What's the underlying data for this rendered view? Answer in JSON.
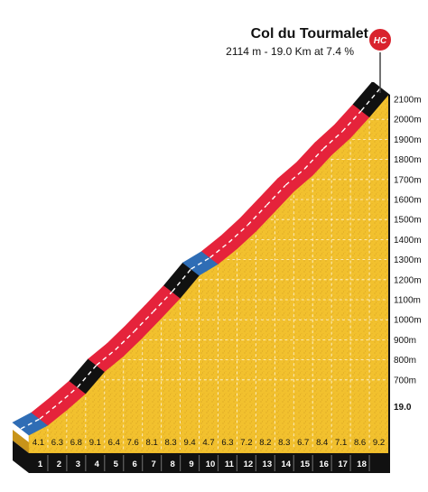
{
  "climb": {
    "name": "Col du Tourmalet",
    "summary": "2114 m - 19.0 Km at 7.4 %",
    "category_badge": "HC"
  },
  "axis": {
    "alt_labels": [
      "2100m",
      "2000m",
      "1900m",
      "1800m",
      "1700m",
      "1600m",
      "1500m",
      "1400m",
      "1300m",
      "1200m",
      "1100m",
      "1000m",
      "900m",
      "800m",
      "700m"
    ],
    "total_distance_label": "19.0"
  },
  "colors": {
    "fill": "#f2c12e",
    "fill_dark": "#e0a91c",
    "side_fill": "#c8941a",
    "ribbon_hard": "#e5233b",
    "ribbon_extreme": "#111111",
    "ribbon_easy": "#2f6db5",
    "hc_badge": "#d9232d",
    "base": "#111111"
  },
  "chart_data": {
    "type": "area",
    "title": "Col du Tourmalet",
    "subtitle": "2114 m - 19.0 Km at 7.4 %",
    "xlabel": "",
    "ylabel": "",
    "x_unit": "km",
    "y_unit": "m",
    "xlim": [
      0,
      19.0
    ],
    "ylim": [
      600,
      2114
    ],
    "km_markers": [
      "1",
      "2",
      "3",
      "4",
      "5",
      "6",
      "7",
      "8",
      "9",
      "10",
      "11",
      "12",
      "13",
      "14",
      "15",
      "16",
      "17",
      "18"
    ],
    "segments": [
      {
        "km": 1,
        "gradient": 4.1
      },
      {
        "km": 2,
        "gradient": 6.3
      },
      {
        "km": 3,
        "gradient": 6.8
      },
      {
        "km": 4,
        "gradient": 9.1
      },
      {
        "km": 5,
        "gradient": 6.4
      },
      {
        "km": 6,
        "gradient": 7.6
      },
      {
        "km": 7,
        "gradient": 8.1
      },
      {
        "km": 8,
        "gradient": 8.3
      },
      {
        "km": 9,
        "gradient": 9.4
      },
      {
        "km": 10,
        "gradient": 4.7
      },
      {
        "km": 11,
        "gradient": 6.3
      },
      {
        "km": 12,
        "gradient": 7.2
      },
      {
        "km": 13,
        "gradient": 8.2
      },
      {
        "km": 14,
        "gradient": 8.3
      },
      {
        "km": 15,
        "gradient": 6.7
      },
      {
        "km": 16,
        "gradient": 8.4
      },
      {
        "km": 17,
        "gradient": 7.1
      },
      {
        "km": 18,
        "gradient": 8.6
      },
      {
        "km": 19,
        "gradient": 9.2
      }
    ],
    "gradient_labels": [
      "4.1",
      "6.3",
      "6.8",
      "9.1",
      "6.4",
      "7.6",
      "8.1",
      "8.3",
      "9.4",
      "4.7",
      "6.3",
      "7.2",
      "8.2",
      "8.3",
      "6.7",
      "8.4",
      "7.1",
      "8.6",
      "9.2"
    ],
    "summit_altitude_m": 2114,
    "length_km": 19.0,
    "avg_gradient_pct": 7.4,
    "grid": true,
    "legend": "none"
  }
}
